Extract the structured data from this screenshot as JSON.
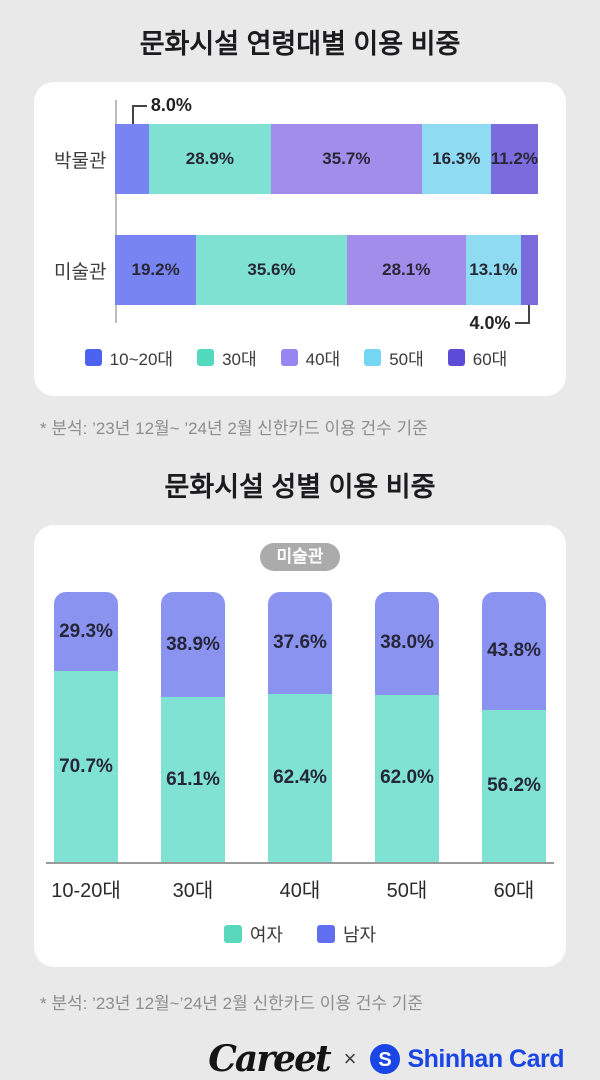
{
  "colors": {
    "background": "#e9e9ea",
    "card": "#ffffff",
    "title_text": "#1c1c1e",
    "footnote_text": "#8d8d8d",
    "badge_bg": "#ababab",
    "shinhan_blue": "#1a46e5"
  },
  "section1": {
    "title": "문화시설 연령대별 이용 비중",
    "footnote": "* 분석: ’23년 12월~ ’24년 2월 신한카드 이용 건수 기준"
  },
  "section2": {
    "title": "문화시설 성별 이용 비중",
    "badge": "미술관",
    "footnote": "* 분석: ’23년 12월~’24년 2월 신한카드 이용 건수 기준"
  },
  "footer": {
    "careet_logo": "Careet",
    "separator": "×",
    "shinhan_symbol": "S",
    "shinhan_name": "Shinhan Card"
  },
  "chart_data": [
    {
      "type": "bar",
      "orientation": "horizontal",
      "stacked": true,
      "title": "문화시설 연령대별 이용 비중",
      "categories": [
        "박물관",
        "미술관"
      ],
      "series": [
        {
          "name": "10~20대",
          "color": "#7884F2",
          "legend_color": "#4D63F0",
          "values": [
            8.0,
            19.2
          ]
        },
        {
          "name": "30대",
          "color": "#7EE1D1",
          "legend_color": "#53DABD",
          "values": [
            28.9,
            35.6
          ]
        },
        {
          "name": "40대",
          "color": "#A38DEB",
          "legend_color": "#9786F2",
          "values": [
            35.7,
            28.1
          ]
        },
        {
          "name": "50대",
          "color": "#8FDCF2",
          "legend_color": "#74D6F2",
          "values": [
            16.3,
            13.1
          ]
        },
        {
          "name": "60대",
          "color": "#7A6CDD",
          "legend_color": "#5C4BD6",
          "values": [
            11.2,
            4.0
          ]
        }
      ],
      "unit": "%",
      "axis_max": 100,
      "legend_position": "bottom",
      "callouts": [
        {
          "row": 0,
          "series": 0,
          "position": "above"
        },
        {
          "row": 1,
          "series": 4,
          "position": "below"
        }
      ]
    },
    {
      "type": "bar",
      "orientation": "vertical",
      "stacked": true,
      "title": "문화시설 성별 이용 비중",
      "badge": "미술관",
      "categories": [
        "10-20대",
        "30대",
        "40대",
        "50대",
        "60대"
      ],
      "series": [
        {
          "name": "여자",
          "color": "#80E2D2",
          "legend_color": "#58D9BC",
          "values": [
            70.7,
            61.1,
            62.4,
            62.0,
            56.2
          ]
        },
        {
          "name": "남자",
          "color": "#8A94F0",
          "legend_color": "#5F6FF0",
          "values": [
            29.3,
            38.9,
            37.6,
            38.0,
            43.8
          ]
        }
      ],
      "unit": "%",
      "axis_max": 100,
      "legend_position": "bottom"
    }
  ]
}
